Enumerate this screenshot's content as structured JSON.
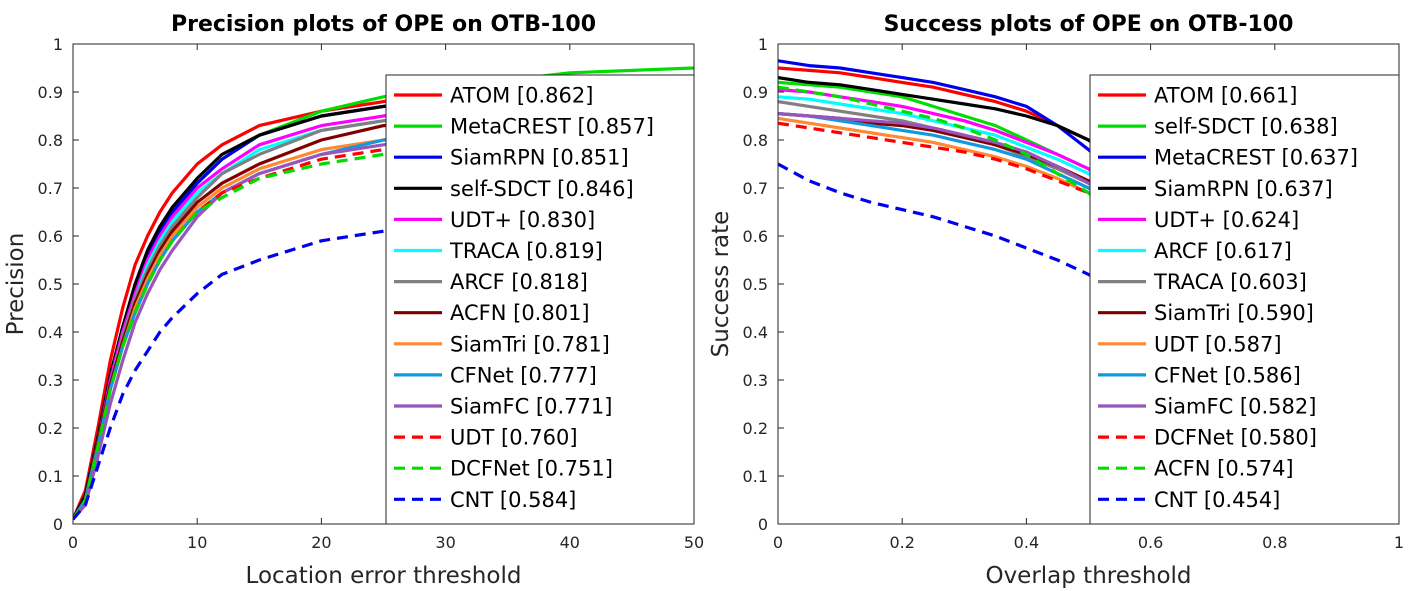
{
  "chart_data": [
    {
      "type": "line",
      "title": "Precision plots of OPE on OTB-100",
      "xlabel": "Location error threshold",
      "ylabel": "Precision",
      "xlim": [
        0,
        50
      ],
      "ylim": [
        0,
        1
      ],
      "xticks": [
        "0",
        "10",
        "20",
        "30",
        "40",
        "50"
      ],
      "yticks": [
        "0",
        "0.1",
        "0.2",
        "0.3",
        "0.4",
        "0.5",
        "0.6",
        "0.7",
        "0.8",
        "0.9",
        "1"
      ],
      "grid": false,
      "legend_position": "right",
      "x": [
        0,
        1,
        2,
        3,
        4,
        5,
        6,
        7,
        8,
        10,
        12,
        15,
        20,
        25,
        30,
        40,
        50
      ],
      "series": [
        {
          "name": "ATOM [0.862]",
          "color": "#ff0000",
          "dash": false,
          "values": [
            0.01,
            0.07,
            0.2,
            0.34,
            0.45,
            0.54,
            0.6,
            0.65,
            0.69,
            0.75,
            0.79,
            0.83,
            0.86,
            0.88,
            0.9,
            0.92,
            0.93
          ]
        },
        {
          "name": "MetaCREST [0.857]",
          "color": "#00dd00",
          "dash": false,
          "values": [
            0.01,
            0.05,
            0.16,
            0.29,
            0.39,
            0.48,
            0.55,
            0.6,
            0.64,
            0.71,
            0.76,
            0.81,
            0.86,
            0.89,
            0.91,
            0.94,
            0.95
          ]
        },
        {
          "name": "SiamRPN [0.851]",
          "color": "#0000ee",
          "dash": false,
          "values": [
            0.01,
            0.06,
            0.18,
            0.31,
            0.41,
            0.49,
            0.56,
            0.61,
            0.65,
            0.71,
            0.76,
            0.81,
            0.85,
            0.87,
            0.88,
            0.89,
            0.89
          ]
        },
        {
          "name": "self-SDCT [0.846]",
          "color": "#000000",
          "dash": false,
          "values": [
            0.01,
            0.06,
            0.18,
            0.31,
            0.41,
            0.5,
            0.57,
            0.62,
            0.66,
            0.72,
            0.77,
            0.81,
            0.85,
            0.87,
            0.88,
            0.89,
            0.9
          ]
        },
        {
          "name": "UDT+ [0.830]",
          "color": "#ff00ff",
          "dash": false,
          "values": [
            0.01,
            0.05,
            0.17,
            0.3,
            0.4,
            0.48,
            0.55,
            0.6,
            0.64,
            0.7,
            0.74,
            0.79,
            0.83,
            0.85,
            0.87,
            0.88,
            0.88
          ]
        },
        {
          "name": "TRACA [0.819]",
          "color": "#00ffff",
          "dash": false,
          "values": [
            0.01,
            0.05,
            0.17,
            0.29,
            0.39,
            0.47,
            0.54,
            0.59,
            0.63,
            0.69,
            0.73,
            0.78,
            0.82,
            0.84,
            0.86,
            0.87,
            0.87
          ]
        },
        {
          "name": "ARCF [0.818]",
          "color": "#808080",
          "dash": false,
          "values": [
            0.01,
            0.05,
            0.17,
            0.29,
            0.39,
            0.47,
            0.53,
            0.58,
            0.62,
            0.68,
            0.73,
            0.77,
            0.82,
            0.84,
            0.86,
            0.87,
            0.87
          ]
        },
        {
          "name": "ACFN [0.801]",
          "color": "#800000",
          "dash": false,
          "values": [
            0.01,
            0.05,
            0.17,
            0.29,
            0.38,
            0.46,
            0.52,
            0.57,
            0.61,
            0.67,
            0.71,
            0.75,
            0.8,
            0.83,
            0.84,
            0.85,
            0.86
          ]
        },
        {
          "name": "SiamTri [0.781]",
          "color": "#ff8833",
          "dash": false,
          "values": [
            0.01,
            0.05,
            0.16,
            0.28,
            0.37,
            0.45,
            0.51,
            0.56,
            0.6,
            0.66,
            0.7,
            0.74,
            0.78,
            0.8,
            0.82,
            0.83,
            0.84
          ]
        },
        {
          "name": "CFNet [0.777]",
          "color": "#1199dd",
          "dash": false,
          "values": [
            0.01,
            0.05,
            0.16,
            0.28,
            0.37,
            0.44,
            0.5,
            0.55,
            0.59,
            0.65,
            0.69,
            0.73,
            0.77,
            0.8,
            0.81,
            0.82,
            0.83
          ]
        },
        {
          "name": "SiamFC [0.771]",
          "color": "#9955bb",
          "dash": false,
          "values": [
            0.01,
            0.04,
            0.14,
            0.25,
            0.34,
            0.42,
            0.48,
            0.53,
            0.57,
            0.64,
            0.69,
            0.73,
            0.77,
            0.79,
            0.81,
            0.82,
            0.83
          ]
        },
        {
          "name": "UDT [0.760]",
          "color": "#ff0000",
          "dash": true,
          "values": [
            0.01,
            0.05,
            0.16,
            0.28,
            0.37,
            0.44,
            0.5,
            0.55,
            0.59,
            0.65,
            0.69,
            0.72,
            0.76,
            0.78,
            0.8,
            0.81,
            0.82
          ]
        },
        {
          "name": "DCFNet [0.751]",
          "color": "#00dd00",
          "dash": true,
          "values": [
            0.01,
            0.05,
            0.16,
            0.28,
            0.37,
            0.44,
            0.5,
            0.55,
            0.59,
            0.65,
            0.68,
            0.72,
            0.75,
            0.77,
            0.79,
            0.8,
            0.81
          ]
        },
        {
          "name": "CNT [0.584]",
          "color": "#0000ee",
          "dash": true,
          "values": [
            0.01,
            0.04,
            0.12,
            0.2,
            0.27,
            0.32,
            0.36,
            0.4,
            0.43,
            0.48,
            0.52,
            0.55,
            0.59,
            0.61,
            0.63,
            0.65,
            0.66
          ]
        }
      ]
    },
    {
      "type": "line",
      "title": "Success plots of OPE on OTB-100",
      "xlabel": "Overlap threshold",
      "ylabel": "Success rate",
      "xlim": [
        0,
        1
      ],
      "ylim": [
        0,
        1
      ],
      "xticks": [
        "0",
        "0.2",
        "0.4",
        "0.6",
        "0.8",
        "1"
      ],
      "yticks": [
        "0",
        "0.1",
        "0.2",
        "0.3",
        "0.4",
        "0.5",
        "0.6",
        "0.7",
        "0.8",
        "0.9",
        "1"
      ],
      "grid": false,
      "legend_position": "right",
      "x": [
        0,
        0.05,
        0.1,
        0.15,
        0.2,
        0.25,
        0.3,
        0.35,
        0.4,
        0.45,
        0.5,
        0.55,
        0.6,
        0.65,
        0.7,
        0.75,
        0.8,
        0.85,
        0.9,
        0.95,
        1.0
      ],
      "series": [
        {
          "name": "ATOM [0.661]",
          "color": "#ff0000",
          "dash": false,
          "values": [
            0.95,
            0.945,
            0.94,
            0.93,
            0.92,
            0.91,
            0.895,
            0.88,
            0.86,
            0.83,
            0.8,
            0.76,
            0.71,
            0.64,
            0.55,
            0.44,
            0.31,
            0.18,
            0.08,
            0.02,
            0.0
          ]
        },
        {
          "name": "self-SDCT [0.638]",
          "color": "#00dd00",
          "dash": false,
          "values": [
            0.92,
            0.915,
            0.91,
            0.9,
            0.89,
            0.87,
            0.85,
            0.83,
            0.8,
            0.77,
            0.74,
            0.69,
            0.64,
            0.57,
            0.49,
            0.39,
            0.28,
            0.17,
            0.07,
            0.02,
            0.0
          ]
        },
        {
          "name": "MetaCREST [0.637]",
          "color": "#0000ee",
          "dash": false,
          "values": [
            0.965,
            0.955,
            0.95,
            0.94,
            0.93,
            0.92,
            0.905,
            0.89,
            0.87,
            0.83,
            0.78,
            0.72,
            0.65,
            0.57,
            0.48,
            0.38,
            0.27,
            0.16,
            0.07,
            0.02,
            0.0
          ]
        },
        {
          "name": "SiamRPN [0.637]",
          "color": "#000000",
          "dash": false,
          "values": [
            0.93,
            0.92,
            0.915,
            0.905,
            0.895,
            0.885,
            0.875,
            0.865,
            0.85,
            0.83,
            0.8,
            0.75,
            0.68,
            0.6,
            0.5,
            0.39,
            0.27,
            0.16,
            0.07,
            0.02,
            0.0
          ]
        },
        {
          "name": "UDT+ [0.624]",
          "color": "#ff00ff",
          "dash": false,
          "values": [
            0.905,
            0.9,
            0.89,
            0.88,
            0.87,
            0.855,
            0.84,
            0.82,
            0.795,
            0.77,
            0.74,
            0.69,
            0.63,
            0.56,
            0.47,
            0.37,
            0.27,
            0.16,
            0.07,
            0.02,
            0.0
          ]
        },
        {
          "name": "ARCF [0.617]",
          "color": "#00ffff",
          "dash": false,
          "values": [
            0.89,
            0.885,
            0.875,
            0.865,
            0.855,
            0.84,
            0.825,
            0.81,
            0.785,
            0.76,
            0.73,
            0.68,
            0.62,
            0.55,
            0.46,
            0.36,
            0.26,
            0.15,
            0.07,
            0.02,
            0.0
          ]
        },
        {
          "name": "TRACA [0.603]",
          "color": "#808080",
          "dash": false,
          "values": [
            0.88,
            0.87,
            0.86,
            0.85,
            0.84,
            0.825,
            0.81,
            0.79,
            0.765,
            0.74,
            0.71,
            0.66,
            0.6,
            0.53,
            0.44,
            0.34,
            0.24,
            0.14,
            0.06,
            0.02,
            0.0
          ]
        },
        {
          "name": "SiamTri [0.590]",
          "color": "#800000",
          "dash": false,
          "values": [
            0.855,
            0.85,
            0.845,
            0.835,
            0.83,
            0.82,
            0.805,
            0.79,
            0.77,
            0.745,
            0.715,
            0.67,
            0.61,
            0.53,
            0.44,
            0.34,
            0.24,
            0.14,
            0.06,
            0.02,
            0.0
          ]
        },
        {
          "name": "UDT [0.587]",
          "color": "#ff8833",
          "dash": false,
          "values": [
            0.845,
            0.835,
            0.825,
            0.815,
            0.805,
            0.795,
            0.78,
            0.765,
            0.745,
            0.72,
            0.69,
            0.65,
            0.59,
            0.52,
            0.43,
            0.34,
            0.24,
            0.14,
            0.06,
            0.02,
            0.0
          ]
        },
        {
          "name": "CFNet [0.586]",
          "color": "#1199dd",
          "dash": false,
          "values": [
            0.855,
            0.85,
            0.84,
            0.83,
            0.82,
            0.81,
            0.795,
            0.78,
            0.76,
            0.73,
            0.7,
            0.65,
            0.59,
            0.52,
            0.43,
            0.33,
            0.23,
            0.14,
            0.06,
            0.02,
            0.0
          ]
        },
        {
          "name": "SiamFC [0.582]",
          "color": "#9955bb",
          "dash": false,
          "values": [
            0.855,
            0.85,
            0.845,
            0.84,
            0.835,
            0.825,
            0.81,
            0.795,
            0.775,
            0.745,
            0.71,
            0.66,
            0.6,
            0.52,
            0.43,
            0.33,
            0.23,
            0.13,
            0.06,
            0.02,
            0.0
          ]
        },
        {
          "name": "DCFNet [0.580]",
          "color": "#ff0000",
          "dash": true,
          "values": [
            0.835,
            0.825,
            0.815,
            0.805,
            0.795,
            0.785,
            0.775,
            0.76,
            0.74,
            0.715,
            0.69,
            0.65,
            0.59,
            0.52,
            0.43,
            0.33,
            0.23,
            0.13,
            0.06,
            0.02,
            0.0
          ]
        },
        {
          "name": "ACFN [0.574]",
          "color": "#00dd00",
          "dash": true,
          "values": [
            0.91,
            0.9,
            0.89,
            0.875,
            0.86,
            0.845,
            0.825,
            0.8,
            0.77,
            0.73,
            0.69,
            0.63,
            0.56,
            0.48,
            0.4,
            0.31,
            0.22,
            0.13,
            0.06,
            0.02,
            0.0
          ]
        },
        {
          "name": "CNT [0.454]",
          "color": "#0000ee",
          "dash": true,
          "values": [
            0.75,
            0.715,
            0.69,
            0.67,
            0.655,
            0.64,
            0.62,
            0.6,
            0.575,
            0.55,
            0.52,
            0.48,
            0.43,
            0.37,
            0.3,
            0.23,
            0.16,
            0.09,
            0.04,
            0.01,
            0.0
          ]
        }
      ]
    }
  ]
}
